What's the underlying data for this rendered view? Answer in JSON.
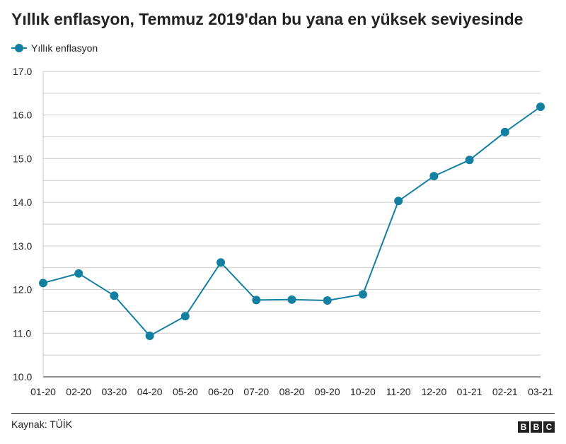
{
  "header": {
    "title": "Yıllık enflasyon, Temmuz 2019'dan bu yana en yüksek seviyesinde"
  },
  "legend": {
    "label": "Yıllık enflasyon"
  },
  "footer": {
    "source": "Kaynak: TÜİK",
    "logo_letters": [
      "B",
      "B",
      "C"
    ]
  },
  "colors": {
    "series": "#1380A1",
    "grid": "#cbcbcb",
    "baseline": "#222222"
  },
  "chart_data": {
    "type": "line",
    "title": "Yıllık enflasyon, Temmuz 2019'dan bu yana en yüksek seviyesinde",
    "categories": [
      "01-20",
      "02-20",
      "03-20",
      "04-20",
      "05-20",
      "06-20",
      "07-20",
      "08-20",
      "09-20",
      "10-20",
      "11-20",
      "12-20",
      "01-21",
      "02-21",
      "03-21"
    ],
    "series": [
      {
        "name": "Yıllık enflasyon",
        "values": [
          12.15,
          12.37,
          11.86,
          10.94,
          11.39,
          12.62,
          11.76,
          11.77,
          11.75,
          11.89,
          14.03,
          14.6,
          14.97,
          15.61,
          16.19
        ]
      }
    ],
    "ylim": [
      10.0,
      17.0
    ],
    "yticks": [
      "10.0",
      "11.0",
      "12.0",
      "13.0",
      "14.0",
      "15.0",
      "16.0",
      "17.0"
    ],
    "grid": true,
    "legend_position": "top-left"
  }
}
